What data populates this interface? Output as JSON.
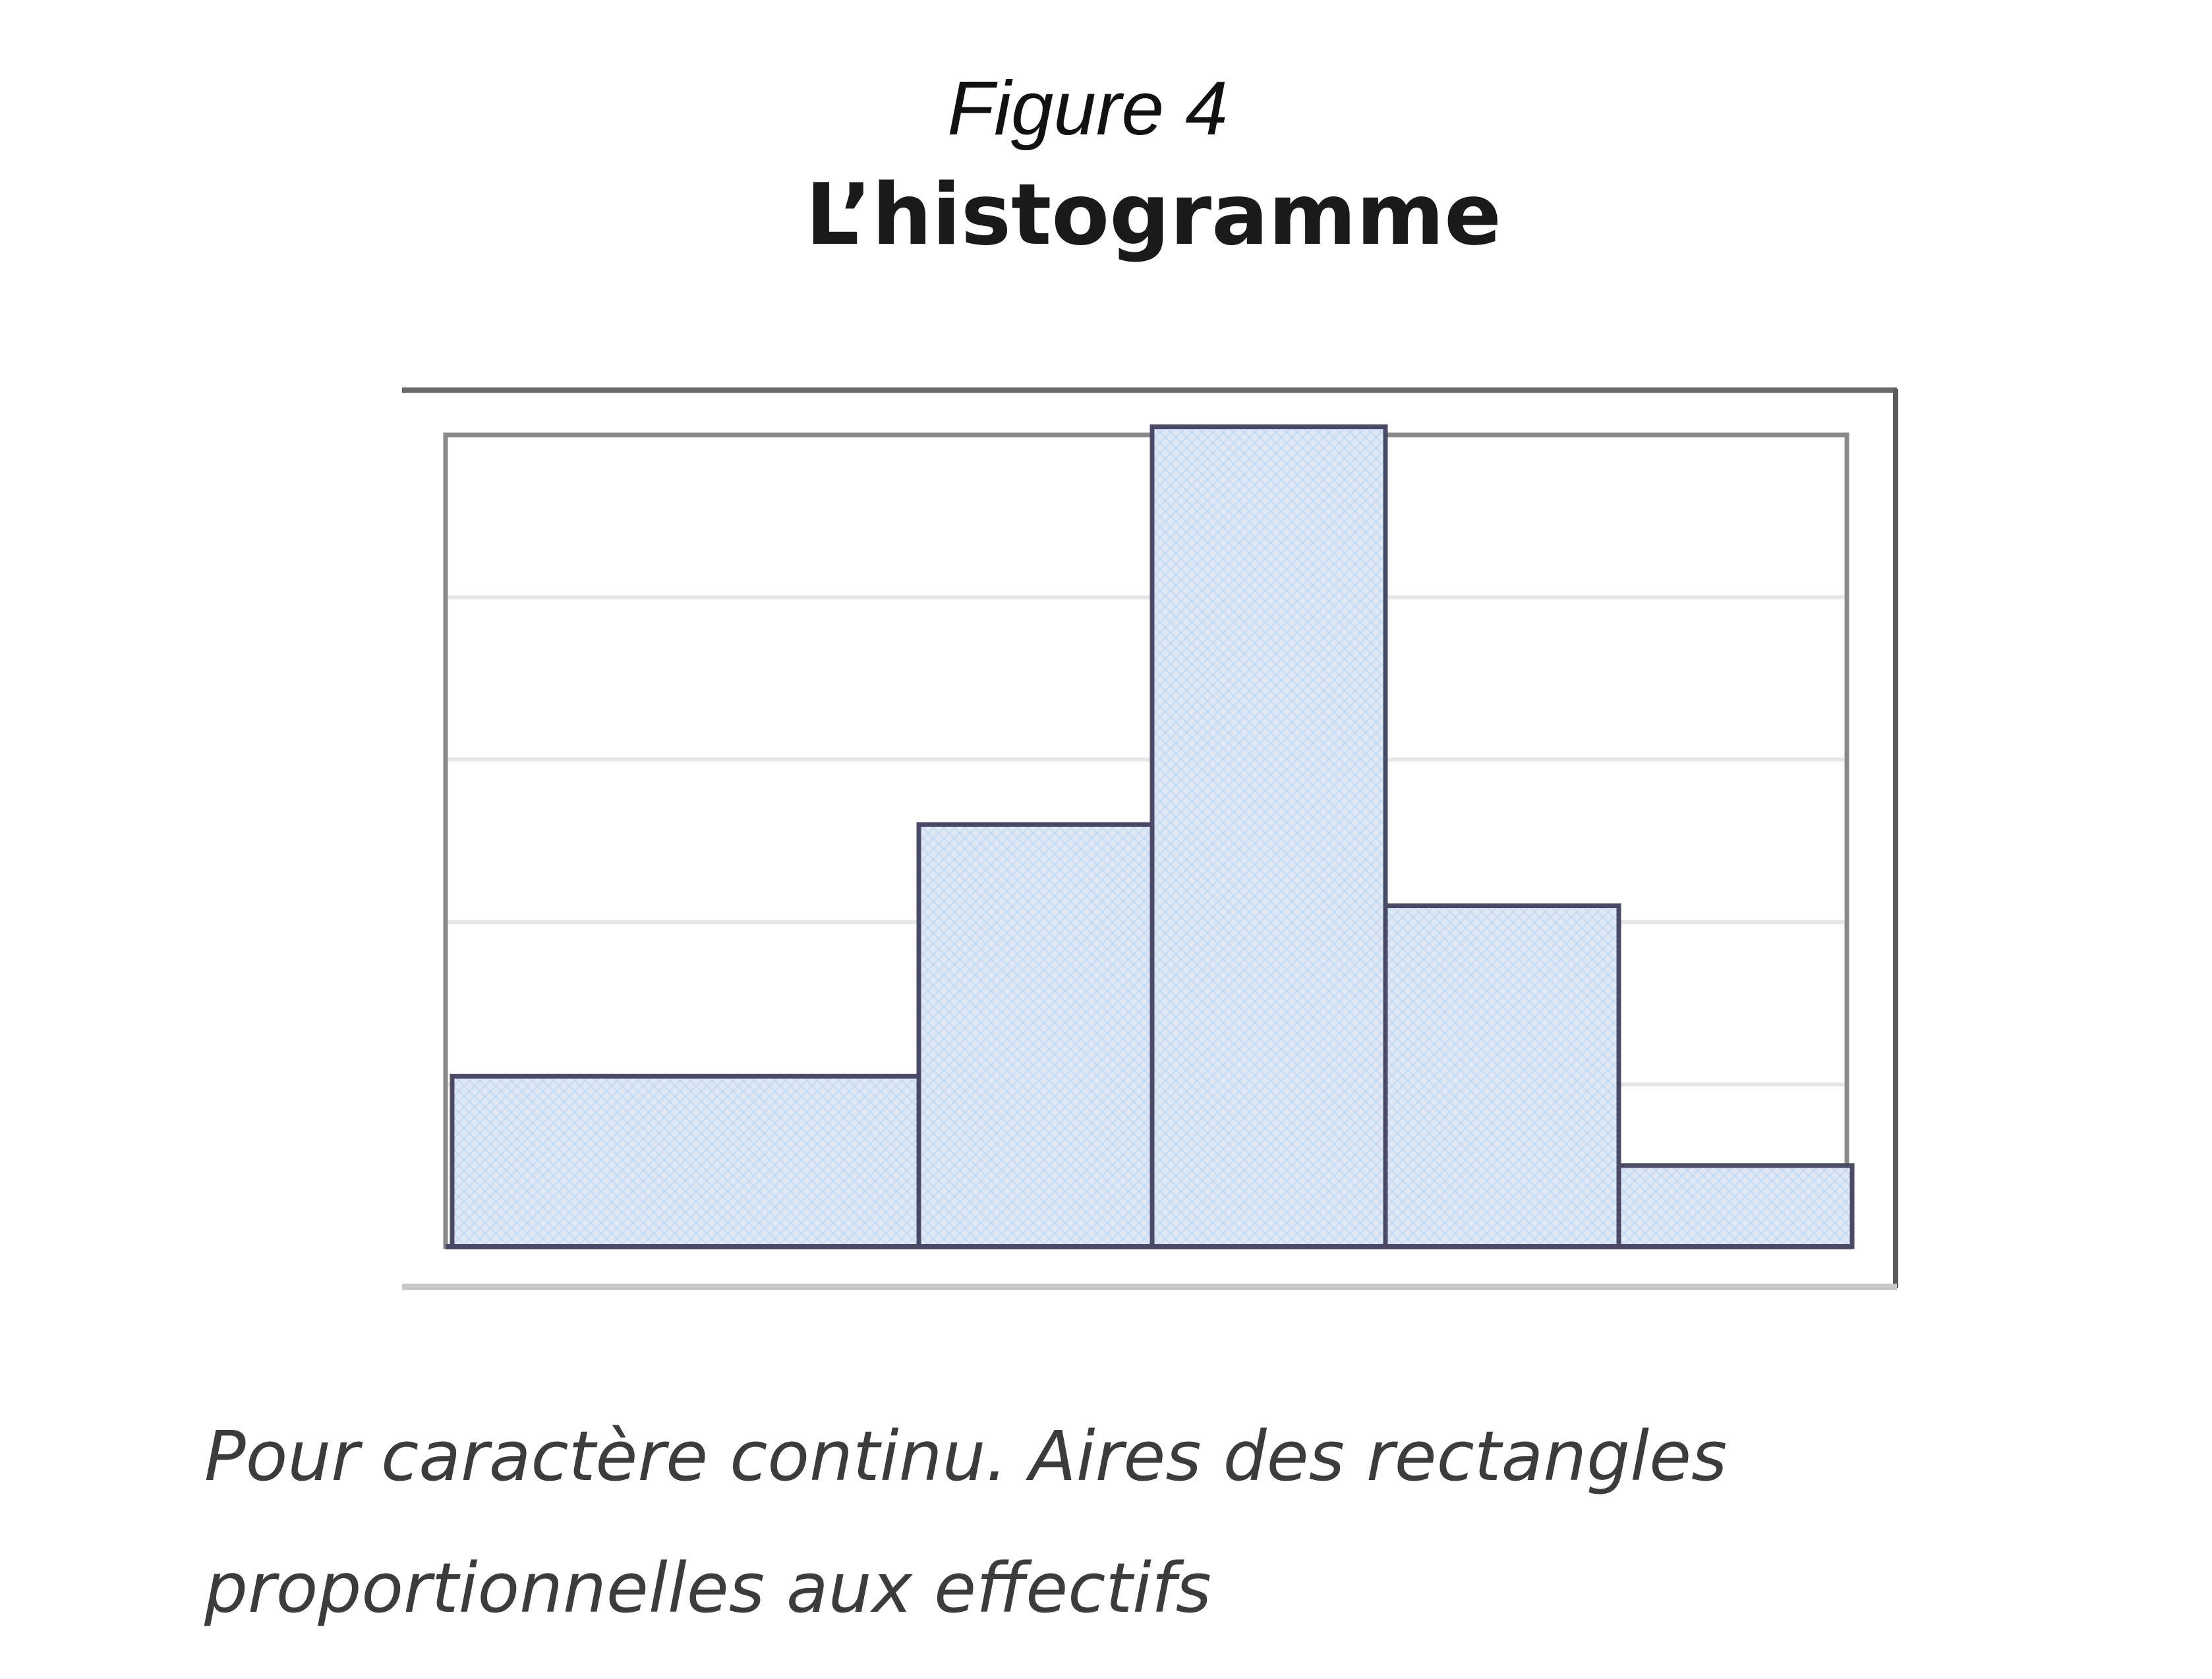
{
  "figure_label": "Figure 4",
  "caption": "Pour caractère continu. Aires des rectangles proportionnelles aux effectifs",
  "colors": {
    "bar_fill": "#dce8f7",
    "bar_stroke": "#4a4a66",
    "grid": "#e6e6e6",
    "frame": "#6e6e6e"
  },
  "chart_data": {
    "type": "bar",
    "title": "L’histogramme",
    "xlabel": "",
    "ylabel": "",
    "grid": true,
    "ylim": [
      0,
      5
    ],
    "x_range": [
      0,
      6
    ],
    "bins": [
      {
        "x_start": 0,
        "x_end": 2,
        "height": 1.05
      },
      {
        "x_start": 2,
        "x_end": 3,
        "height": 2.6
      },
      {
        "x_start": 3,
        "x_end": 4,
        "height": 5.05
      },
      {
        "x_start": 4,
        "x_end": 5,
        "height": 2.1
      },
      {
        "x_start": 5,
        "x_end": 6,
        "height": 0.5
      }
    ]
  }
}
